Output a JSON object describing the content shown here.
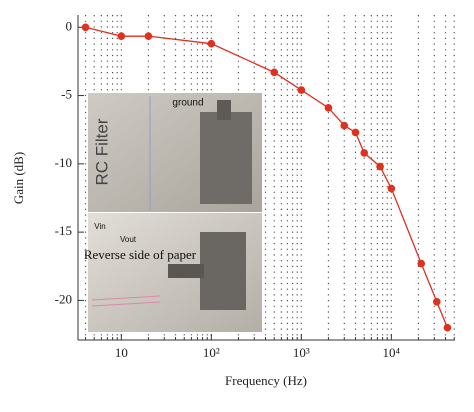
{
  "chart_data": {
    "type": "line",
    "x_label": "Frequency (Hz)",
    "y_label": "Gain (dB)",
    "x_scale": "log",
    "grid": true,
    "xlim": [
      3.3,
      51000
    ],
    "ylim": [
      -22.9,
      0.9
    ],
    "xticks": [
      10,
      {
        "value": 100,
        "label": "10²"
      },
      {
        "value": 1000,
        "label": "10³"
      },
      {
        "value": 10000,
        "label": "10⁴"
      }
    ],
    "xminorticks": [
      4,
      5,
      6,
      7,
      8,
      9,
      20,
      30,
      40,
      50,
      60,
      70,
      80,
      90,
      200,
      300,
      400,
      500,
      600,
      700,
      800,
      900,
      2000,
      3000,
      4000,
      5000,
      6000,
      7000,
      8000,
      9000,
      20000,
      30000,
      40000,
      50000
    ],
    "yticks": [
      0,
      -5,
      -10,
      -15,
      -20
    ],
    "series": [
      {
        "color": "#e0301e",
        "x": [
          4,
          10,
          20,
          100,
          500,
          1000,
          2000,
          3000,
          4000,
          5000,
          7500,
          10000,
          21500,
          32000,
          42000
        ],
        "values": [
          0,
          -0.65,
          -0.65,
          -1.2,
          -3.3,
          -4.6,
          -5.9,
          -7.2,
          -7.7,
          -9.2,
          -10.2,
          -11.8,
          -17.3,
          -20.1,
          -22
        ]
      }
    ],
    "annotations": [
      "RC Filter",
      "ground",
      "Reverse side of paper",
      "Vin",
      "Vout"
    ]
  }
}
